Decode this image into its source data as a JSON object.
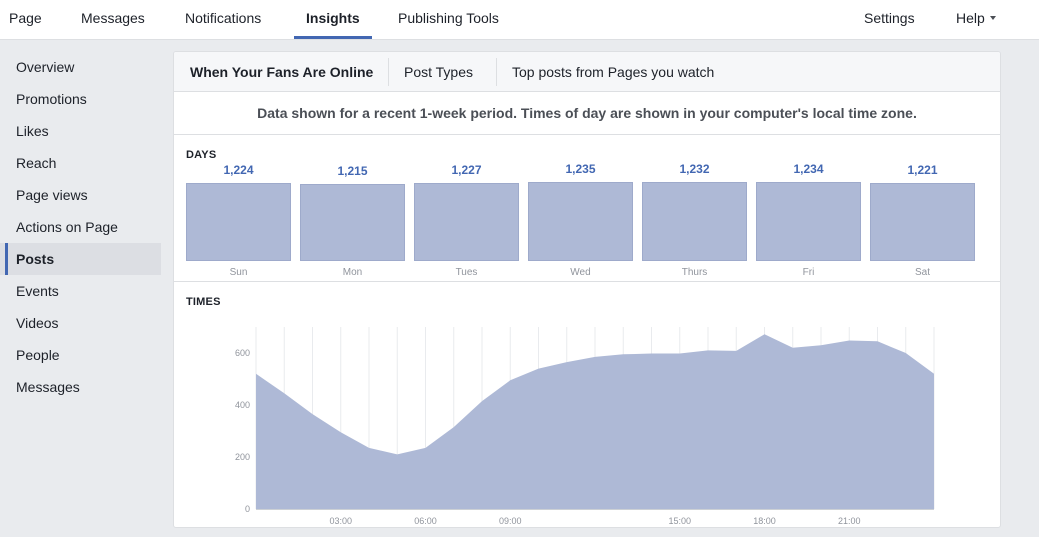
{
  "topnav": {
    "tabs": [
      {
        "label": "Page"
      },
      {
        "label": "Messages"
      },
      {
        "label": "Notifications"
      },
      {
        "label": "Insights",
        "active": true
      },
      {
        "label": "Publishing Tools"
      }
    ],
    "settings_label": "Settings",
    "help_label": "Help"
  },
  "sidebar": {
    "items": [
      {
        "label": "Overview"
      },
      {
        "label": "Promotions"
      },
      {
        "label": "Likes"
      },
      {
        "label": "Reach"
      },
      {
        "label": "Page views"
      },
      {
        "label": "Actions on Page"
      },
      {
        "label": "Posts",
        "active": true
      },
      {
        "label": "Events"
      },
      {
        "label": "Videos"
      },
      {
        "label": "People"
      },
      {
        "label": "Messages"
      }
    ]
  },
  "main": {
    "subtabs": [
      {
        "label": "When Your Fans Are Online",
        "active": true
      },
      {
        "label": "Post Types"
      },
      {
        "label": "Top posts from Pages you watch"
      }
    ],
    "notice": "Data shown for a recent 1-week period. Times of day are shown in your computer's local time zone.",
    "days_title": "DAYS",
    "times_title": "TIMES"
  },
  "colors": {
    "accent": "#4267b2",
    "bar_fill": "#aeb9d6",
    "area_fill": "#aeb9d6"
  },
  "chart_data": [
    {
      "type": "bar",
      "title": "DAYS",
      "categories": [
        "Sun",
        "Mon",
        "Tues",
        "Wed",
        "Thurs",
        "Fri",
        "Sat"
      ],
      "values": [
        1224,
        1215,
        1227,
        1235,
        1232,
        1234,
        1221
      ],
      "value_labels": [
        "1,224",
        "1,215",
        "1,227",
        "1,235",
        "1,232",
        "1,234",
        "1,221"
      ]
    },
    {
      "type": "area",
      "title": "TIMES",
      "x": [
        0,
        1,
        2,
        3,
        4,
        5,
        6,
        7,
        8,
        9,
        10,
        11,
        12,
        13,
        14,
        15,
        16,
        17,
        18,
        19,
        20,
        21,
        22,
        23,
        24
      ],
      "y": [
        520,
        445,
        365,
        295,
        235,
        210,
        235,
        315,
        415,
        495,
        540,
        565,
        585,
        595,
        598,
        598,
        610,
        608,
        672,
        620,
        630,
        648,
        645,
        600,
        520
      ],
      "x_tick_labels": [
        {
          "x": 3,
          "label": "03:00"
        },
        {
          "x": 6,
          "label": "06:00"
        },
        {
          "x": 9,
          "label": "09:00"
        },
        {
          "x": 15,
          "label": "15:00"
        },
        {
          "x": 18,
          "label": "18:00"
        },
        {
          "x": 21,
          "label": "21:00"
        }
      ],
      "y_ticks": [
        0,
        200,
        400,
        600
      ],
      "ylim": [
        0,
        700
      ],
      "xlim": [
        0,
        24
      ],
      "grid": "vertical"
    }
  ]
}
